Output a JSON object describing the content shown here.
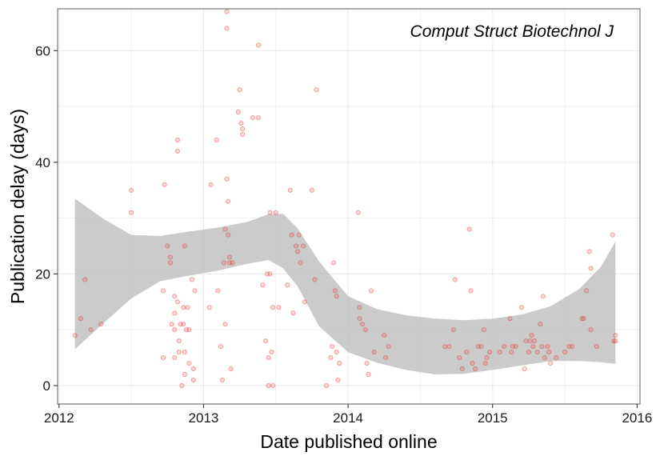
{
  "chart_data": {
    "type": "scatter",
    "title": "Comput Struct Biotechnol J",
    "xlabel": "Date published online",
    "ylabel": "Publication delay (days)",
    "xlim": [
      2011.99,
      2016.02
    ],
    "ylim": [
      -3.3,
      67.5
    ],
    "x_ticks": [
      2012,
      2013,
      2014,
      2015,
      2016
    ],
    "x_tick_labels": [
      "2012",
      "2013",
      "2014",
      "2015",
      "2016"
    ],
    "y_ticks": [
      0,
      20,
      40,
      60
    ],
    "y_tick_labels": [
      "0",
      "20",
      "40",
      "60"
    ],
    "grid": true,
    "legend": "none",
    "colors": {
      "points": "#e8342e",
      "band": "#bdbdbd",
      "grid": "#ebebeb",
      "frame": "#7f7f7f"
    },
    "points": [
      [
        2012.11,
        9
      ],
      [
        2012.15,
        12
      ],
      [
        2012.18,
        19
      ],
      [
        2012.22,
        10
      ],
      [
        2012.29,
        11
      ],
      [
        2012.5,
        35
      ],
      [
        2012.5,
        31
      ],
      [
        2012.73,
        36
      ],
      [
        2012.75,
        25
      ],
      [
        2012.77,
        23
      ],
      [
        2012.77,
        22
      ],
      [
        2012.78,
        11
      ],
      [
        2012.8,
        16
      ],
      [
        2012.8,
        13
      ],
      [
        2012.8,
        10
      ],
      [
        2012.82,
        44
      ],
      [
        2012.82,
        42
      ],
      [
        2012.82,
        15
      ],
      [
        2012.83,
        8
      ],
      [
        2012.83,
        6
      ],
      [
        2012.84,
        11
      ],
      [
        2012.85,
        0
      ],
      [
        2012.86,
        14
      ],
      [
        2012.86,
        11
      ],
      [
        2012.87,
        25
      ],
      [
        2012.87,
        6
      ],
      [
        2012.87,
        2
      ],
      [
        2012.88,
        10
      ],
      [
        2012.89,
        14
      ],
      [
        2012.9,
        10
      ],
      [
        2012.9,
        4
      ],
      [
        2012.92,
        19
      ],
      [
        2012.93,
        3
      ],
      [
        2012.93,
        1
      ],
      [
        2012.94,
        17
      ],
      [
        2012.72,
        17
      ],
      [
        2012.72,
        5
      ],
      [
        2012.8,
        5
      ],
      [
        2013.04,
        14
      ],
      [
        2013.05,
        36
      ],
      [
        2013.09,
        44
      ],
      [
        2013.1,
        17
      ],
      [
        2013.12,
        7
      ],
      [
        2013.13,
        1
      ],
      [
        2013.14,
        22
      ],
      [
        2013.15,
        28
      ],
      [
        2013.15,
        11
      ],
      [
        2013.16,
        64
      ],
      [
        2013.16,
        67
      ],
      [
        2013.16,
        37
      ],
      [
        2013.17,
        33
      ],
      [
        2013.17,
        27
      ],
      [
        2013.18,
        23
      ],
      [
        2013.18,
        22
      ],
      [
        2013.19,
        3
      ],
      [
        2013.2,
        22
      ],
      [
        2013.24,
        49
      ],
      [
        2013.25,
        53
      ],
      [
        2013.26,
        47
      ],
      [
        2013.27,
        46
      ],
      [
        2013.27,
        45
      ],
      [
        2013.34,
        48
      ],
      [
        2013.38,
        48
      ],
      [
        2013.38,
        61
      ],
      [
        2013.41,
        18
      ],
      [
        2013.43,
        8
      ],
      [
        2013.44,
        20
      ],
      [
        2013.45,
        0
      ],
      [
        2013.45,
        5
      ],
      [
        2013.46,
        31
      ],
      [
        2013.46,
        20
      ],
      [
        2013.47,
        6
      ],
      [
        2013.48,
        0
      ],
      [
        2013.48,
        14
      ],
      [
        2013.5,
        31
      ],
      [
        2013.52,
        14
      ],
      [
        2013.58,
        18
      ],
      [
        2013.6,
        35
      ],
      [
        2013.61,
        27
      ],
      [
        2013.62,
        13
      ],
      [
        2013.64,
        25
      ],
      [
        2013.65,
        24
      ],
      [
        2013.66,
        27
      ],
      [
        2013.67,
        22
      ],
      [
        2013.69,
        25
      ],
      [
        2013.7,
        15
      ],
      [
        2013.75,
        35
      ],
      [
        2013.77,
        19
      ],
      [
        2013.78,
        53
      ],
      [
        2013.85,
        0
      ],
      [
        2013.88,
        5
      ],
      [
        2013.89,
        7
      ],
      [
        2013.9,
        22
      ],
      [
        2013.91,
        17
      ],
      [
        2013.92,
        16
      ],
      [
        2013.92,
        6
      ],
      [
        2013.93,
        1
      ],
      [
        2013.94,
        4
      ],
      [
        2014.07,
        31
      ],
      [
        2014.08,
        14
      ],
      [
        2014.08,
        12
      ],
      [
        2014.1,
        11
      ],
      [
        2014.12,
        10
      ],
      [
        2014.13,
        4
      ],
      [
        2014.14,
        2
      ],
      [
        2014.16,
        17
      ],
      [
        2014.18,
        6
      ],
      [
        2014.25,
        9
      ],
      [
        2014.26,
        5
      ],
      [
        2014.28,
        7
      ],
      [
        2014.67,
        7
      ],
      [
        2014.7,
        7
      ],
      [
        2014.73,
        10
      ],
      [
        2014.74,
        19
      ],
      [
        2014.77,
        5
      ],
      [
        2014.79,
        3
      ],
      [
        2014.82,
        6
      ],
      [
        2014.84,
        28
      ],
      [
        2014.85,
        17
      ],
      [
        2014.86,
        4
      ],
      [
        2014.88,
        3
      ],
      [
        2014.9,
        7
      ],
      [
        2014.92,
        7
      ],
      [
        2014.94,
        10
      ],
      [
        2014.95,
        4
      ],
      [
        2014.96,
        5
      ],
      [
        2014.98,
        6
      ],
      [
        2015.05,
        6
      ],
      [
        2015.08,
        7
      ],
      [
        2015.12,
        12
      ],
      [
        2015.13,
        6
      ],
      [
        2015.14,
        7
      ],
      [
        2015.16,
        7
      ],
      [
        2015.2,
        14
      ],
      [
        2015.22,
        3
      ],
      [
        2015.23,
        8
      ],
      [
        2015.25,
        6
      ],
      [
        2015.26,
        8
      ],
      [
        2015.27,
        9
      ],
      [
        2015.28,
        7
      ],
      [
        2015.29,
        8
      ],
      [
        2015.31,
        6
      ],
      [
        2015.33,
        11
      ],
      [
        2015.34,
        7
      ],
      [
        2015.35,
        16
      ],
      [
        2015.36,
        5
      ],
      [
        2015.38,
        7
      ],
      [
        2015.39,
        6
      ],
      [
        2015.4,
        4
      ],
      [
        2015.44,
        5
      ],
      [
        2015.5,
        6
      ],
      [
        2015.53,
        7
      ],
      [
        2015.55,
        7
      ],
      [
        2015.62,
        12
      ],
      [
        2015.63,
        12
      ],
      [
        2015.65,
        17
      ],
      [
        2015.67,
        24
      ],
      [
        2015.68,
        10
      ],
      [
        2015.68,
        21
      ],
      [
        2015.72,
        7
      ],
      [
        2015.83,
        27
      ],
      [
        2015.84,
        8
      ],
      [
        2015.85,
        8
      ],
      [
        2015.85,
        9
      ]
    ],
    "smooth_band": {
      "x": [
        2012.11,
        2012.3,
        2012.5,
        2012.7,
        2012.9,
        2013.1,
        2013.3,
        2013.45,
        2013.55,
        2013.65,
        2013.8,
        2014.0,
        2014.2,
        2014.4,
        2014.6,
        2014.8,
        2015.0,
        2015.2,
        2015.4,
        2015.6,
        2015.75,
        2015.85
      ],
      "upper": [
        33.5,
        30,
        27,
        26.8,
        27.6,
        28.3,
        29.3,
        30.7,
        30.8,
        28.2,
        22.2,
        16,
        13.7,
        12.6,
        12,
        11.7,
        12,
        12.7,
        14.2,
        17.3,
        21.3,
        25.8
      ],
      "lower": [
        6.5,
        11,
        15.6,
        18.7,
        19.7,
        20.6,
        21.8,
        22.5,
        21,
        17.8,
        10.6,
        6,
        4.1,
        2.8,
        2,
        2.1,
        2.8,
        3.6,
        4.4,
        4.4,
        4.2,
        3.9
      ]
    }
  }
}
